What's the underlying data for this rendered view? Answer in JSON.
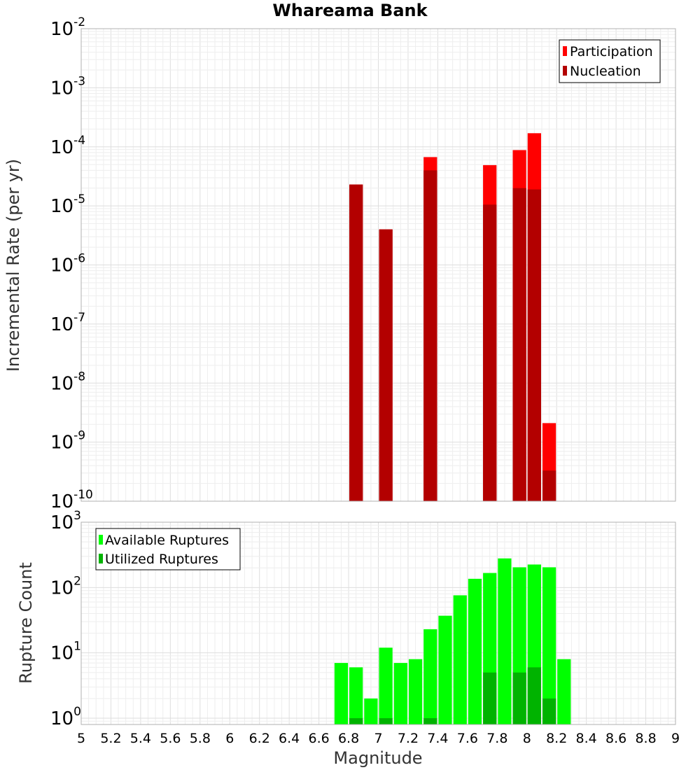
{
  "title": "Whareama Bank",
  "xlabel": "Magnitude",
  "colors": {
    "participation": "#ff0000",
    "nucleation": "#b30000",
    "available": "#00ff00",
    "utilized": "#00b300",
    "grid": "#e8e8e8",
    "frame": "#b0b0b0"
  },
  "chart_data": [
    {
      "type": "bar",
      "ylabel": "Incremental Rate (per yr)",
      "yscale": "log",
      "ylim": [
        1e-10,
        0.01
      ],
      "xlim": [
        5,
        9
      ],
      "legend": {
        "position": "top-right",
        "entries": [
          "Participation",
          "Nucleation"
        ]
      },
      "bin_width": 0.1,
      "series": [
        {
          "name": "Participation",
          "x": [
            6.85,
            7.05,
            7.35,
            7.75,
            7.95,
            8.05,
            8.15
          ],
          "values": [
            2.3e-05,
            4e-06,
            6.7e-05,
            4.9e-05,
            8.8e-05,
            0.00017,
            2.1e-09
          ]
        },
        {
          "name": "Nucleation",
          "x": [
            6.85,
            7.05,
            7.35,
            7.75,
            7.95,
            8.05,
            8.15
          ],
          "values": [
            2.3e-05,
            4e-06,
            4e-05,
            1.05e-05,
            2e-05,
            1.9e-05,
            3.3e-10
          ]
        }
      ]
    },
    {
      "type": "bar",
      "ylabel": "Rupture Count",
      "yscale": "log",
      "ylim": [
        0.8,
        1000
      ],
      "xlim": [
        5,
        9
      ],
      "legend": {
        "position": "top-left",
        "entries": [
          "Available Ruptures",
          "Utilized Ruptures"
        ]
      },
      "bin_width": 0.1,
      "series": [
        {
          "name": "Available Ruptures",
          "x": [
            6.75,
            6.85,
            6.95,
            7.05,
            7.15,
            7.25,
            7.35,
            7.45,
            7.55,
            7.65,
            7.75,
            7.85,
            7.95,
            8.05,
            8.15,
            8.25
          ],
          "values": [
            7,
            6,
            2,
            12,
            7,
            8,
            23,
            37,
            76,
            136,
            167,
            279,
            204,
            225,
            204,
            8
          ]
        },
        {
          "name": "Utilized Ruptures",
          "x": [
            6.85,
            7.05,
            7.35,
            7.75,
            7.95,
            8.05,
            8.15
          ],
          "values": [
            1,
            1,
            1,
            5,
            5,
            6,
            2
          ]
        }
      ]
    }
  ],
  "x_ticks": [
    "5",
    "5.2",
    "5.4",
    "5.6",
    "5.8",
    "6",
    "6.2",
    "6.4",
    "6.6",
    "6.8",
    "7",
    "7.2",
    "7.4",
    "7.6",
    "7.8",
    "8",
    "8.2",
    "8.4",
    "8.6",
    "8.8",
    "9"
  ],
  "top_y_ticks": [
    {
      "base": "10",
      "exp": "-2"
    },
    {
      "base": "10",
      "exp": "-3"
    },
    {
      "base": "10",
      "exp": "-4"
    },
    {
      "base": "10",
      "exp": "-5"
    },
    {
      "base": "10",
      "exp": "-6"
    },
    {
      "base": "10",
      "exp": "-7"
    },
    {
      "base": "10",
      "exp": "-8"
    },
    {
      "base": "10",
      "exp": "-9"
    },
    {
      "base": "10",
      "exp": "-10"
    }
  ],
  "bottom_y_ticks": [
    {
      "base": "10",
      "exp": "3"
    },
    {
      "base": "10",
      "exp": "2"
    },
    {
      "base": "10",
      "exp": "1"
    },
    {
      "base": "10",
      "exp": "0"
    }
  ]
}
